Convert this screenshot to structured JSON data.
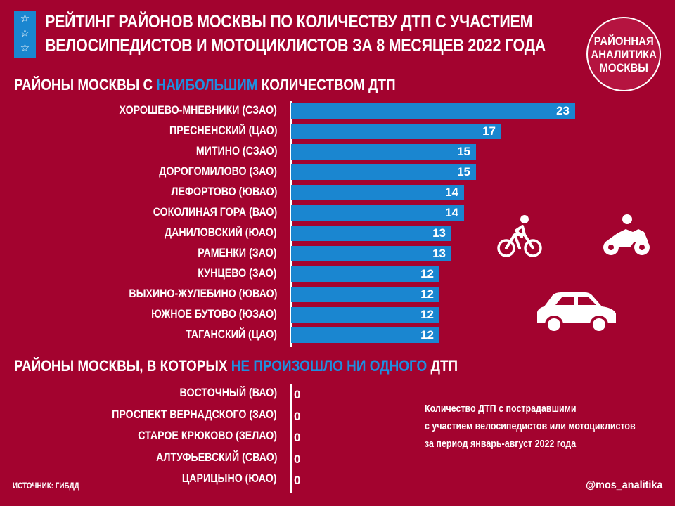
{
  "header": {
    "title_line1": "РЕЙТИНГ РАЙОНОВ МОСКВЫ ПО КОЛИЧЕСТВУ ДТП С УЧАСТИЕМ",
    "title_line2": "ВЕЛОСИПЕДИСТОВ И МОТОЦИКЛИСТОВ ЗА 8 МЕСЯЦЕВ 2022 ГОДА",
    "badge_lines": [
      "РАЙОННАЯ",
      "АНАЛИТИКА",
      "МОСКВЫ"
    ]
  },
  "section_top": {
    "prefix": "РАЙОНЫ МОСКВЫ С ",
    "highlight": "НАИБОЛЬШИМ",
    "suffix": " КОЛИЧЕСТВОМ ДТП"
  },
  "section_zero": {
    "prefix": "РАЙОНЫ МОСКВЫ, В КОТОРЫХ ",
    "highlight": "НЕ ПРОИЗОШЛО НИ ОДНОГО",
    "suffix": " ДТП"
  },
  "chart_data": [
    {
      "type": "bar",
      "orientation": "horizontal",
      "categories": [
        "ХОРОШЕВО-МНЕВНИКИ (СЗАО)",
        "ПРЕСНЕНСКИЙ (ЦАО)",
        "МИТИНО (СЗАО)",
        "ДОРОГОМИЛОВО (ЗАО)",
        "ЛЕФОРТОВО (ЮВАО)",
        "СОКОЛИНАЯ ГОРА (ВАО)",
        "ДАНИЛОВСКИЙ (ЮАО)",
        "РАМЕНКИ (ЗАО)",
        "КУНЦЕВО (ЗАО)",
        "ВЫХИНО-ЖУЛЕБИНО (ЮВАО)",
        "ЮЖНОЕ БУТОВО (ЮЗАО)",
        "ТАГАНСКИЙ (ЦАО)"
      ],
      "values": [
        23,
        17,
        15,
        15,
        14,
        14,
        13,
        13,
        12,
        12,
        12,
        12
      ],
      "bar_color": "#1a86d0"
    },
    {
      "type": "bar",
      "orientation": "horizontal",
      "categories": [
        "ВОСТОЧНЫЙ (ВАО)",
        "ПРОСПЕКТ ВЕРНАДСКОГО (ЗАО)",
        "СТАРОЕ КРЮКОВО (ЗЕЛАО)",
        "АЛТУФЬЕВСКИЙ (СВАО)",
        "ЦАРИЦЫНО (ЮАО)"
      ],
      "values": [
        0,
        0,
        0,
        0,
        0
      ]
    }
  ],
  "note_lines": [
    "Количество ДТП с пострадавшими",
    "с участием велосипедистов или мотоциклистов",
    "за период январь-август 2022 года"
  ],
  "footer": {
    "source": "ИСТОЧНИК: ГИБДД",
    "handle": "@mos_analitika"
  },
  "icons": [
    "star-icon",
    "bicycle-icon",
    "motorcycle-icon",
    "car-icon"
  ],
  "colors": {
    "background": "#a3032f",
    "accent": "#1a86d0",
    "highlight_text": "#1e8fe0"
  }
}
